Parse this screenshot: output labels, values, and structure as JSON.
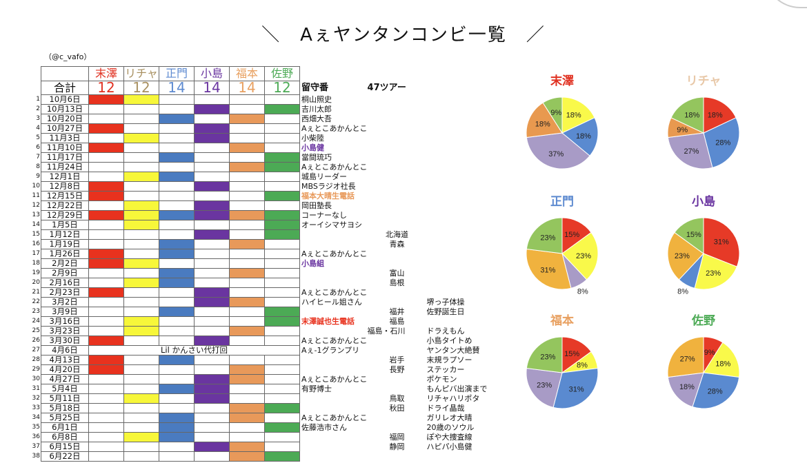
{
  "title": "＼　Aぇヤンタンコンビ一覧　／",
  "credit": "（@c_vafo）",
  "members": [
    {
      "name": "末澤",
      "total": "12",
      "color": "#e03020",
      "cell": "#e8321e"
    },
    {
      "name": "リチャ",
      "total": "12",
      "color": "#a89060",
      "cell": "#f7f73a"
    },
    {
      "name": "正門",
      "total": "14",
      "color": "#5d8ad0",
      "cell": "#4a7bc0"
    },
    {
      "name": "小島",
      "total": "14",
      "color": "#6a35a0",
      "cell": "#6a35a0"
    },
    {
      "name": "福本",
      "total": "14",
      "color": "#e8a060",
      "cell": "#e8995a"
    },
    {
      "name": "佐野",
      "total": "12",
      "color": "#4caa55",
      "cell": "#4caa55"
    }
  ],
  "total_label": "合計",
  "col_rusuban": "留守番",
  "col_tour": "47ツアー",
  "rows": [
    {
      "n": "1",
      "date": "10月6日",
      "on": [
        0,
        1
      ],
      "note": "桐山照史"
    },
    {
      "n": "2",
      "date": "10月13日",
      "on": [
        3,
        5
      ],
      "note": "吉川太郎"
    },
    {
      "n": "3",
      "date": "10月20日",
      "on": [
        2,
        4
      ],
      "note": "西畑大吾"
    },
    {
      "n": "4",
      "date": "10月27日",
      "on": [
        0,
        3
      ],
      "note": "Aぇとこあかんとこ"
    },
    {
      "n": "5",
      "date": "11月3日",
      "on": [
        1,
        3
      ],
      "note": "小柴陸"
    },
    {
      "n": "6",
      "date": "11月10日",
      "on": [
        0,
        4
      ],
      "note": "小島健",
      "note_color": "#6a35a0"
    },
    {
      "n": "7",
      "date": "11月17日",
      "on": [
        2,
        5
      ],
      "note": "當間琉巧"
    },
    {
      "n": "8",
      "date": "11月24日",
      "on": [
        4,
        5
      ],
      "note": "Aぇとこあかんとこ"
    },
    {
      "n": "9",
      "date": "12月1日",
      "on": [
        1,
        2
      ],
      "note": "城島リーダー"
    },
    {
      "n": "10",
      "date": "12月8日",
      "on": [
        0,
        3
      ],
      "note": "MBSラジオ社長"
    },
    {
      "n": "11",
      "date": "12月15日",
      "on": [
        0,
        5
      ],
      "note": "福本大晴生電話",
      "note_color": "#e8995a"
    },
    {
      "n": "12",
      "date": "12月22日",
      "on": [
        1,
        3
      ],
      "note": "岡田塾長"
    },
    {
      "n": "13",
      "date": "12月29日",
      "on": [
        0,
        1,
        2,
        3,
        4,
        5
      ],
      "note": "コーナーなし"
    },
    {
      "n": "14",
      "date": "1月5日",
      "on": [
        1,
        5
      ],
      "note": "オーイシマサヨシ"
    },
    {
      "n": "15",
      "date": "1月12日",
      "on": [
        3,
        5
      ],
      "tour": "北海道"
    },
    {
      "n": "16",
      "date": "1月19日",
      "on": [
        2,
        4
      ],
      "tour": "青森"
    },
    {
      "n": "17",
      "date": "1月26日",
      "on": [
        0,
        2
      ],
      "note": "Aぇとこあかんとこ"
    },
    {
      "n": "18",
      "date": "2月2日",
      "on": [
        0,
        1
      ],
      "note": "小島組",
      "note_color": "#6a35a0"
    },
    {
      "n": "19",
      "date": "2月9日",
      "on": [
        2,
        4
      ],
      "tour": "富山"
    },
    {
      "n": "20",
      "date": "2月16日",
      "on": [
        1,
        2
      ],
      "tour": "島根"
    },
    {
      "n": "21",
      "date": "2月23日",
      "on": [
        0,
        3
      ],
      "note": "Aぇとこあかんとこ"
    },
    {
      "n": "22",
      "date": "3月2日",
      "on": [
        3,
        4
      ],
      "note": "ハイヒール姐さん",
      "extra": "堺っ子体操"
    },
    {
      "n": "23",
      "date": "3月9日",
      "on": [
        2,
        5
      ],
      "tour": "福井",
      "extra": "佐野誕生日"
    },
    {
      "n": "24",
      "date": "3月16日",
      "on": [
        1,
        5
      ],
      "note": "末澤誠也生電話",
      "note_color": "#e8321e",
      "tour": "福島"
    },
    {
      "n": "25",
      "date": "3月23日",
      "on": [
        1,
        4
      ],
      "tour": "福島・石川",
      "extra": "ドラえもん"
    },
    {
      "n": "26",
      "date": "3月30日",
      "on": [
        0,
        3
      ],
      "note": "Aぇとこあかんとこ",
      "extra": "小島タイトめ"
    },
    {
      "n": "27",
      "date": "4月6日",
      "on": [],
      "merged": "Lil かんさい代打回",
      "note": "Aぇ-1グランプリ",
      "extra": "ヤンタン大絶賛"
    },
    {
      "n": "28",
      "date": "4月13日",
      "on": [
        0,
        2
      ],
      "tour": "岩手",
      "extra": "末規ラプソー"
    },
    {
      "n": "29",
      "date": "4月20日",
      "on": [
        0,
        4
      ],
      "tour": "長野",
      "extra": "ステッカー"
    },
    {
      "n": "30",
      "date": "4月27日",
      "on": [
        3,
        4
      ],
      "note": "Aぇとこあかんとこ",
      "extra": "ポケモン"
    },
    {
      "n": "31",
      "date": "5月4日",
      "on": [
        2,
        3
      ],
      "note": "有野博士",
      "extra": "もんピバ出演まで"
    },
    {
      "n": "32",
      "date": "5月11日",
      "on": [
        1,
        3
      ],
      "tour": "鳥取",
      "extra": "リチャハリポタ"
    },
    {
      "n": "33",
      "date": "5月18日",
      "on": [
        4,
        5
      ],
      "tour": "秋田",
      "extra": "ドライ晶哉"
    },
    {
      "n": "34",
      "date": "5月25日",
      "on": [
        2,
        4
      ],
      "note": "Aぇとこあかんとこ",
      "extra": "ガリレオ大晴"
    },
    {
      "n": "35",
      "date": "6月1日",
      "on": [
        2,
        5
      ],
      "note": "佐藤浩市さん",
      "extra": "20歳のソウル"
    },
    {
      "n": "36",
      "date": "6月8日",
      "on": [
        1,
        2
      ],
      "tour": "福岡",
      "extra": "ぽや大捜査線"
    },
    {
      "n": "37",
      "date": "6月15日",
      "on": [
        3,
        4
      ],
      "tour": "静岡",
      "extra": "ハピパ小島健"
    },
    {
      "n": "38",
      "date": "6月22日",
      "on": [
        4,
        5
      ]
    }
  ],
  "chart_data": [
    {
      "type": "pie",
      "title": "末澤",
      "title_color": "#e03020",
      "labels": [
        "リチャ",
        "正門",
        "小島",
        "福本",
        "佐野"
      ],
      "values": [
        18,
        18,
        37,
        18,
        9
      ],
      "colors": [
        "#f9f94a",
        "#5a8ad0",
        "#a89bc6",
        "#e8994f",
        "#94c55e"
      ]
    },
    {
      "type": "pie",
      "title": "リチャ",
      "title_color": "#e8c8a8",
      "labels": [
        "末澤",
        "正門",
        "小島",
        "福本",
        "佐野"
      ],
      "values": [
        18,
        28,
        27,
        9,
        18
      ],
      "colors": [
        "#e63a27",
        "#5a8ad0",
        "#a89bc6",
        "#e8994f",
        "#94c55e"
      ]
    },
    {
      "type": "pie",
      "title": "正門",
      "title_color": "#5d8ad0",
      "labels": [
        "末澤",
        "リチャ",
        "小島",
        "福本",
        "佐野"
      ],
      "values": [
        15,
        23,
        8,
        31,
        23
      ],
      "colors": [
        "#e63a27",
        "#f9f94a",
        "#a89bc6",
        "#f0b23e",
        "#94c55e"
      ]
    },
    {
      "type": "pie",
      "title": "小島",
      "title_color": "#6a35a0",
      "labels": [
        "末澤",
        "リチャ",
        "正門",
        "福本",
        "佐野"
      ],
      "values": [
        31,
        23,
        8,
        23,
        15
      ],
      "colors": [
        "#e63a27",
        "#f9f94a",
        "#5a8ad0",
        "#f0b23e",
        "#94c55e"
      ]
    },
    {
      "type": "pie",
      "title": "福本",
      "title_color": "#e8a060",
      "labels": [
        "末澤",
        "リチャ",
        "正門",
        "小島",
        "佐野"
      ],
      "values": [
        15,
        8,
        31,
        23,
        23
      ],
      "colors": [
        "#e63a27",
        "#f9f94a",
        "#5a8ad0",
        "#a89bc6",
        "#94c55e"
      ]
    },
    {
      "type": "pie",
      "title": "佐野",
      "title_color": "#4caa55",
      "labels": [
        "末澤",
        "リチャ",
        "正門",
        "小島",
        "福本"
      ],
      "values": [
        9,
        18,
        28,
        18,
        27
      ],
      "colors": [
        "#e63a27",
        "#f9f94a",
        "#5a8ad0",
        "#a89bc6",
        "#f0b23e"
      ]
    }
  ]
}
